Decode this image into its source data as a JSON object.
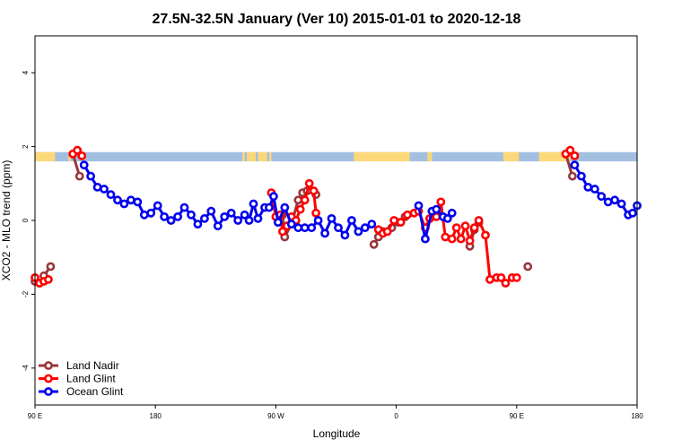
{
  "chart_data": {
    "type": "line",
    "title": "27.5N-32.5N January (Ver 10)   2015-01-01 to 2020-12-18",
    "xlabel": "Longitude",
    "ylabel": "XCO2 - MLO trend (ppm)",
    "xlim": [
      -90,
      180
    ],
    "ylim": [
      -5,
      5
    ],
    "x_ticks": [
      {
        "value": -90,
        "label": "90 E"
      },
      {
        "value": -36,
        "label": "180"
      },
      {
        "value": 18,
        "label": "90 W"
      },
      {
        "value": 72,
        "label": "0"
      },
      {
        "value": 126,
        "label": "90 E"
      },
      {
        "value": 180,
        "label": "180"
      }
    ],
    "y_ticks": [
      {
        "value": -4,
        "label": "-4"
      },
      {
        "value": -2,
        "label": "-2"
      },
      {
        "value": 0,
        "label": "0"
      },
      {
        "value": 2,
        "label": "2"
      },
      {
        "value": 4,
        "label": "4"
      }
    ],
    "grid": false,
    "legend_position": "bottom-left",
    "surface_band": {
      "y_range": [
        1.6,
        1.85
      ],
      "ocean_color": "#a3bfe0",
      "land_color": "#fcd878",
      "land_segments": [
        [
          -90,
          -81
        ],
        [
          -75,
          -74
        ],
        [
          3,
          4
        ],
        [
          5,
          9
        ],
        [
          10,
          14
        ],
        [
          15,
          16
        ],
        [
          53,
          78
        ],
        [
          86,
          88
        ],
        [
          120,
          127
        ],
        [
          136,
          150
        ]
      ]
    },
    "series": [
      {
        "name": "Land Nadir",
        "color": "#99363a",
        "segments": [
          [
            [
              -90,
              -1.65
            ],
            [
              -88,
              -1.7
            ],
            [
              -86,
              -1.5
            ],
            [
              -83,
              -1.25
            ]
          ],
          [
            [
              -73,
              1.8
            ],
            [
              -70,
              1.2
            ]
          ],
          [
            [
              19,
              -0.05
            ],
            [
              21,
              0.15
            ],
            [
              22,
              -0.45
            ],
            [
              25,
              -0.1
            ],
            [
              28,
              0.55
            ],
            [
              30,
              0.75
            ],
            [
              32,
              0.8
            ],
            [
              36,
              0.7
            ]
          ],
          [
            [
              62,
              -0.65
            ],
            [
              64,
              -0.45
            ],
            [
              66,
              -0.3
            ],
            [
              70,
              -0.2
            ],
            [
              73,
              -0.05
            ],
            [
              76,
              0.1
            ]
          ],
          [
            [
              105,
              -0.7
            ],
            [
              107,
              -0.25
            ],
            [
              109,
              -0.05
            ]
          ],
          [
            [
              131,
              -1.25
            ]
          ],
          [
            [
              148,
              1.8
            ],
            [
              151,
              1.2
            ]
          ]
        ]
      },
      {
        "name": "Land Glint",
        "color": "#ff0000",
        "segments": [
          [
            [
              -90,
              -1.55
            ],
            [
              -88,
              -1.7
            ],
            [
              -86,
              -1.65
            ],
            [
              -84,
              -1.6
            ]
          ],
          [
            [
              -73,
              1.8
            ],
            [
              -71,
              1.9
            ],
            [
              -69,
              1.75
            ]
          ],
          [
            [
              16,
              0.75
            ],
            [
              18,
              0.1
            ],
            [
              20,
              0.15
            ],
            [
              21,
              -0.3
            ],
            [
              23,
              -0.15
            ],
            [
              25,
              0.1
            ],
            [
              27,
              0.0
            ],
            [
              29,
              0.3
            ],
            [
              31,
              0.55
            ],
            [
              33,
              1.0
            ],
            [
              35,
              0.8
            ],
            [
              36,
              0.2
            ]
          ],
          [
            [
              64,
              -0.25
            ],
            [
              66,
              -0.35
            ],
            [
              68,
              -0.3
            ],
            [
              71,
              0.0
            ],
            [
              74,
              -0.05
            ],
            [
              77,
              0.15
            ],
            [
              80,
              0.2
            ],
            [
              82,
              0.25
            ],
            [
              85,
              -0.2
            ],
            [
              87,
              0.05
            ],
            [
              90,
              0.1
            ],
            [
              92,
              0.5
            ],
            [
              94,
              -0.45
            ],
            [
              97,
              -0.5
            ],
            [
              99,
              -0.2
            ],
            [
              101,
              -0.5
            ],
            [
              103,
              -0.15
            ],
            [
              105,
              -0.55
            ],
            [
              107,
              -0.2
            ],
            [
              109,
              0.0
            ],
            [
              112,
              -0.4
            ],
            [
              114,
              -1.6
            ],
            [
              117,
              -1.55
            ],
            [
              119,
              -1.55
            ],
            [
              121,
              -1.7
            ],
            [
              124,
              -1.55
            ],
            [
              126,
              -1.55
            ]
          ],
          [
            [
              148,
              1.8
            ],
            [
              150,
              1.9
            ],
            [
              152,
              1.75
            ]
          ]
        ]
      },
      {
        "name": "Ocean Glint",
        "color": "#0000ee",
        "segments": [
          [
            [
              -68,
              1.5
            ],
            [
              -65,
              1.2
            ],
            [
              -62,
              0.9
            ],
            [
              -59,
              0.85
            ],
            [
              -56,
              0.7
            ],
            [
              -53,
              0.55
            ],
            [
              -50,
              0.45
            ],
            [
              -47,
              0.55
            ],
            [
              -44,
              0.5
            ],
            [
              -41,
              0.15
            ],
            [
              -38,
              0.2
            ],
            [
              -35,
              0.4
            ],
            [
              -32,
              0.1
            ],
            [
              -29,
              0.0
            ],
            [
              -26,
              0.1
            ],
            [
              -23,
              0.35
            ],
            [
              -20,
              0.15
            ],
            [
              -17,
              -0.1
            ],
            [
              -14,
              0.05
            ],
            [
              -11,
              0.25
            ],
            [
              -8,
              -0.15
            ],
            [
              -5,
              0.1
            ],
            [
              -2,
              0.2
            ],
            [
              1,
              0.0
            ],
            [
              4,
              0.15
            ],
            [
              6,
              0.0
            ],
            [
              8,
              0.45
            ],
            [
              10,
              0.05
            ],
            [
              13,
              0.35
            ],
            [
              15,
              0.35
            ],
            [
              17,
              0.65
            ],
            [
              19,
              -0.05
            ],
            [
              22,
              0.35
            ],
            [
              25,
              -0.1
            ],
            [
              28,
              -0.2
            ],
            [
              31,
              -0.2
            ],
            [
              34,
              -0.2
            ],
            [
              37,
              0.0
            ],
            [
              40,
              -0.35
            ],
            [
              43,
              0.05
            ],
            [
              46,
              -0.2
            ],
            [
              49,
              -0.4
            ],
            [
              52,
              0.0
            ],
            [
              55,
              -0.3
            ],
            [
              58,
              -0.2
            ],
            [
              61,
              -0.1
            ]
          ],
          [
            [
              82,
              0.4
            ],
            [
              85,
              -0.5
            ],
            [
              88,
              0.25
            ],
            [
              90,
              0.3
            ],
            [
              93,
              0.1
            ],
            [
              95,
              0.05
            ],
            [
              97,
              0.2
            ]
          ],
          [
            [
              152,
              1.5
            ],
            [
              155,
              1.2
            ],
            [
              158,
              0.9
            ],
            [
              161,
              0.85
            ],
            [
              164,
              0.65
            ],
            [
              167,
              0.5
            ],
            [
              170,
              0.55
            ],
            [
              173,
              0.45
            ],
            [
              176,
              0.15
            ],
            [
              178,
              0.2
            ],
            [
              180,
              0.4
            ]
          ]
        ]
      }
    ]
  }
}
